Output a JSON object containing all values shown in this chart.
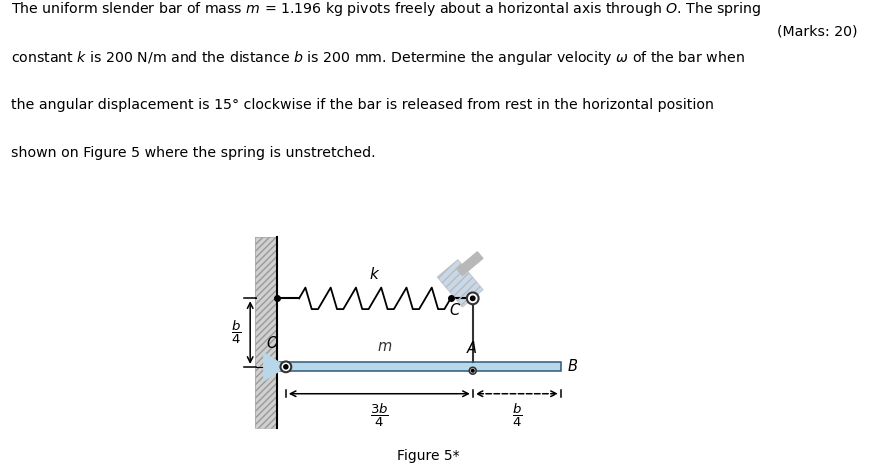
{
  "text_lines": [
    "The uniform slender bar of mass $m$ = 1.196 kg pivots freely about a horizontal axis through $O$. The spring",
    "constant $k$ is 200 N/m and the distance $b$ is 200 mm. Determine the angular velocity $\\omega$ of the bar when",
    "the angular displacement is 15° clockwise if the bar is released from rest in the horizontal position",
    "shown on Figure 5 where the spring is unstretched."
  ],
  "marks_text": "(Marks: 20)",
  "figure_caption": "Figure 5*",
  "bg_color": "#ffffff",
  "bar_color": "#b8d8ea",
  "wall_color": "#d0d0d0",
  "support_color_light": "#c8d8e8",
  "support_color_dark": "#c0c8d0",
  "text_color": "#000000"
}
